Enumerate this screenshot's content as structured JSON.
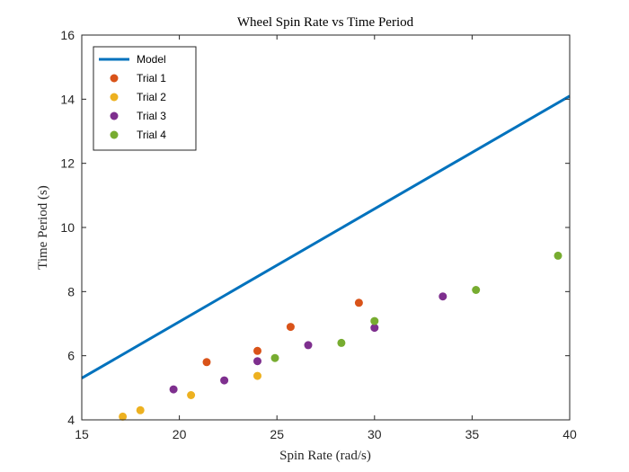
{
  "chart_data": {
    "type": "scatter",
    "title": "Wheel Spin Rate vs Time Period",
    "xlabel": "Spin Rate (rad/s)",
    "ylabel": "Time Period (s)",
    "xlim": [
      15,
      40
    ],
    "ylim": [
      4,
      16
    ],
    "xticks": [
      "15",
      "20",
      "25",
      "30",
      "35",
      "40"
    ],
    "yticks": [
      "4",
      "6",
      "8",
      "10",
      "12",
      "14",
      "16"
    ],
    "grid": false,
    "legend_position": "top-left",
    "series": [
      {
        "name": "Model",
        "kind": "line",
        "color": "#0072BD",
        "points": [
          [
            15,
            5.3
          ],
          [
            40,
            14.1
          ]
        ]
      },
      {
        "name": "Trial 1",
        "kind": "marker",
        "color": "#D95319",
        "points": [
          [
            21.4,
            5.8
          ],
          [
            24.0,
            6.15
          ],
          [
            25.7,
            6.9
          ],
          [
            29.2,
            7.65
          ]
        ]
      },
      {
        "name": "Trial 2",
        "kind": "marker",
        "color": "#EDB120",
        "points": [
          [
            17.1,
            4.1
          ],
          [
            18.0,
            4.3
          ],
          [
            20.6,
            4.77
          ],
          [
            24.0,
            5.37
          ]
        ]
      },
      {
        "name": "Trial 3",
        "kind": "marker",
        "color": "#7E2F8E",
        "points": [
          [
            19.7,
            4.95
          ],
          [
            22.3,
            5.23
          ],
          [
            24.0,
            5.83
          ],
          [
            26.6,
            6.33
          ],
          [
            30.0,
            6.87
          ],
          [
            33.5,
            7.85
          ]
        ]
      },
      {
        "name": "Trial 4",
        "kind": "marker",
        "color": "#77AC30",
        "points": [
          [
            24.9,
            5.93
          ],
          [
            28.3,
            6.4
          ],
          [
            30.0,
            7.08
          ],
          [
            35.2,
            8.05
          ],
          [
            39.4,
            9.12
          ]
        ]
      }
    ]
  }
}
